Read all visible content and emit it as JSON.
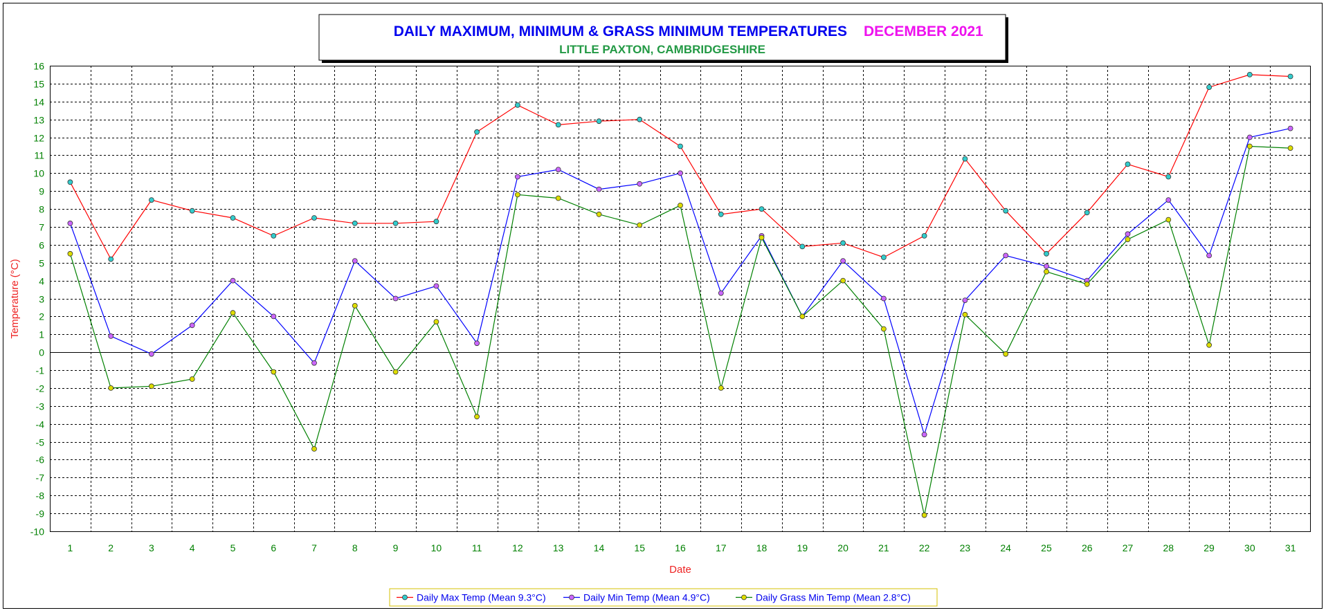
{
  "chart_data": {
    "type": "line",
    "title": "DAILY MAXIMUM, MINIMUM & GRASS MINIMUM TEMPERATURES",
    "title_date": "DECEMBER 2021",
    "subtitle": "LITTLE PAXTON, CAMBRIDGESHIRE",
    "xlabel": "Date",
    "ylabel": "Temperature (°C)",
    "ylim": [
      -10,
      16
    ],
    "y_ticks": [
      16,
      15,
      14,
      13,
      12,
      11,
      10,
      9,
      8,
      7,
      6,
      5,
      4,
      3,
      2,
      1,
      0,
      -1,
      -2,
      -3,
      -4,
      -5,
      -6,
      -7,
      -8,
      -9,
      -10
    ],
    "x": [
      1,
      2,
      3,
      4,
      5,
      6,
      7,
      8,
      9,
      10,
      11,
      12,
      13,
      14,
      15,
      16,
      17,
      18,
      19,
      20,
      21,
      22,
      23,
      24,
      25,
      26,
      27,
      28,
      29,
      30,
      31
    ],
    "grid": true,
    "legend_position": "bottom-center",
    "colors": {
      "title": "#0000ee",
      "title_date": "#ee11ee",
      "subtitle": "#229944",
      "tick_labels": "#008000",
      "axis_titles": "#ee2222",
      "grid": "#000000"
    },
    "series": [
      {
        "name": "Daily Max Temp (Mean 9.3°C)",
        "color": "#ff0000",
        "marker_fill": "#33cccc",
        "values": [
          9.5,
          5.2,
          8.5,
          7.9,
          7.5,
          6.5,
          7.5,
          7.2,
          7.2,
          7.3,
          12.3,
          13.8,
          12.7,
          12.9,
          13.0,
          11.5,
          7.7,
          8.0,
          5.9,
          6.1,
          5.3,
          6.5,
          10.8,
          7.9,
          5.5,
          7.8,
          10.5,
          9.8,
          14.8,
          15.5,
          15.4
        ]
      },
      {
        "name": "Daily Min Temp (Mean 4.9°C)",
        "color": "#0000ff",
        "marker_fill": "#cc66ff",
        "values": [
          7.2,
          0.9,
          -0.1,
          1.5,
          4.0,
          2.0,
          -0.6,
          5.1,
          3.0,
          3.7,
          0.5,
          9.8,
          10.2,
          9.1,
          9.4,
          10.0,
          3.3,
          6.5,
          2.0,
          5.1,
          3.0,
          -4.6,
          2.9,
          5.4,
          4.8,
          4.0,
          6.6,
          8.5,
          5.4,
          12.0,
          12.5
        ]
      },
      {
        "name": "Daily Grass Min Temp (Mean 2.8°C)",
        "color": "#008000",
        "marker_fill": "#dddd00",
        "values": [
          5.5,
          -2.0,
          -1.9,
          -1.5,
          2.2,
          -1.1,
          -5.4,
          2.6,
          -1.1,
          1.7,
          -3.6,
          8.8,
          8.6,
          7.7,
          7.1,
          8.2,
          -2.0,
          6.4,
          2.0,
          4.0,
          1.3,
          -9.1,
          2.1,
          -0.1,
          4.5,
          3.8,
          6.3,
          7.4,
          0.4,
          11.5,
          11.4
        ]
      }
    ]
  }
}
